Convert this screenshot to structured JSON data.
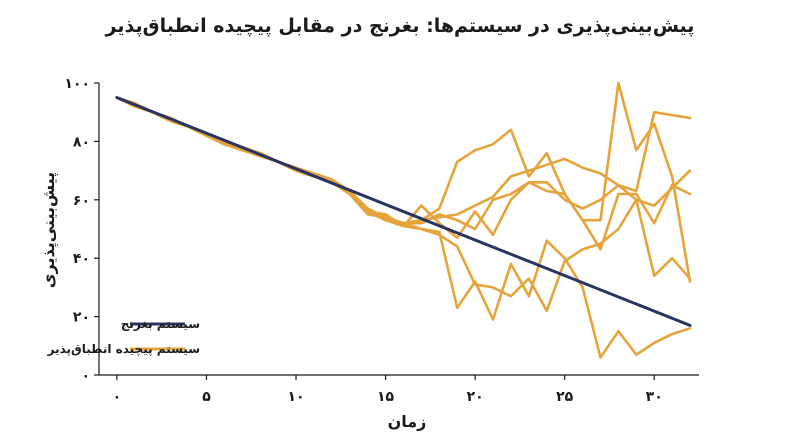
{
  "chart_data": {
    "type": "line",
    "title": "پیش‌بینی‌پذیری در سیستم‌ها: بغرنج در مقابل پیچیده انطباق‌پذیر",
    "xlabel": "زمان",
    "ylabel": "پیش‌بینی‌پذیری",
    "xlim": [
      -1,
      32.5
    ],
    "ylim": [
      0,
      100
    ],
    "x_ticks": [
      0,
      5,
      10,
      15,
      20,
      25,
      30
    ],
    "x_tick_labels": [
      "۰",
      "۵",
      "۱۰",
      "۱۵",
      "۲۰",
      "۲۵",
      "۳۰"
    ],
    "y_ticks": [
      0,
      20,
      40,
      60,
      80,
      100
    ],
    "y_tick_labels": [
      "۰",
      "۲۰",
      "۴۰",
      "۶۰",
      "۸۰",
      "۱۰۰"
    ],
    "grid": false,
    "legend_position": "bottom-left",
    "colors": {
      "complicated": "#283462",
      "complex": "#E5A43C"
    },
    "series": [
      {
        "name": "سیستم بغرنج",
        "color": "#283462",
        "x": [
          0,
          32
        ],
        "y": [
          95,
          17
        ]
      },
      {
        "name": "سیستم پیچیده انطباق‌پذیر",
        "color": "#E5A43C",
        "x": [
          0,
          1,
          2,
          3,
          4,
          5,
          6,
          7,
          8,
          9,
          10,
          11,
          12,
          13,
          14,
          15,
          16,
          17,
          18,
          19,
          20,
          21,
          22,
          23,
          24,
          25,
          26,
          27,
          28,
          29,
          30,
          31,
          32
        ],
        "y": [
          95,
          93,
          90,
          88,
          85,
          82,
          80,
          78,
          76,
          73,
          71,
          69,
          67,
          63,
          57,
          54,
          52,
          52,
          55,
          53,
          50,
          60,
          62,
          66,
          66,
          60,
          57,
          60,
          65,
          63,
          90,
          89,
          88
        ]
      },
      {
        "name": "",
        "color": "#E5A43C",
        "x": [
          0,
          1,
          2,
          3,
          4,
          5,
          6,
          7,
          8,
          9,
          10,
          11,
          12,
          13,
          14,
          15,
          16,
          17,
          18,
          19,
          20,
          21,
          22,
          23,
          24,
          25,
          26,
          27,
          28,
          29,
          30,
          31,
          32
        ],
        "y": [
          95,
          92,
          90,
          87,
          85,
          82,
          79,
          77,
          75,
          73,
          70,
          68,
          66,
          63,
          56,
          54,
          52,
          53,
          54,
          55,
          58,
          61,
          68,
          70,
          72,
          74,
          71,
          69,
          65,
          60,
          58,
          64,
          70
        ]
      },
      {
        "name": "",
        "color": "#E5A43C",
        "x": [
          0,
          1,
          2,
          3,
          4,
          5,
          6,
          7,
          8,
          9,
          10,
          11,
          12,
          13,
          14,
          15,
          16,
          17,
          18,
          19,
          20,
          21,
          22,
          23,
          24,
          25,
          26,
          27,
          28,
          29,
          30,
          31,
          32
        ],
        "y": [
          95,
          93,
          90,
          88,
          85,
          82,
          80,
          77,
          75,
          73,
          70,
          68,
          66,
          62,
          55,
          54,
          51,
          58,
          52,
          47,
          56,
          48,
          60,
          66,
          63,
          62,
          53,
          53,
          100,
          77,
          86,
          68,
          32
        ]
      },
      {
        "name": "",
        "color": "#E5A43C",
        "x": [
          0,
          1,
          2,
          3,
          4,
          5,
          6,
          7,
          8,
          9,
          10,
          11,
          12,
          13,
          14,
          15,
          16,
          17,
          18,
          19,
          20,
          21,
          22,
          23,
          24,
          25,
          26,
          27,
          28,
          29,
          30,
          31,
          32
        ],
        "y": [
          95,
          92,
          90,
          87,
          85,
          82,
          80,
          78,
          75,
          73,
          70,
          68,
          66,
          63,
          56,
          55,
          51,
          53,
          57,
          73,
          77,
          79,
          84,
          68,
          76,
          62,
          53,
          43,
          62,
          62,
          52,
          65,
          62
        ]
      },
      {
        "name": "",
        "color": "#E5A43C",
        "x": [
          0,
          1,
          2,
          3,
          4,
          5,
          6,
          7,
          8,
          9,
          10,
          11,
          12,
          13,
          14,
          15,
          16,
          17,
          18,
          19,
          20,
          21,
          22,
          23,
          24,
          25,
          26,
          27,
          28,
          29,
          30,
          31,
          32
        ],
        "y": [
          95,
          92,
          90,
          88,
          85,
          82,
          79,
          77,
          75,
          73,
          70,
          68,
          66,
          63,
          56,
          53,
          51,
          50,
          49,
          23,
          32,
          19,
          38,
          27,
          46,
          40,
          30,
          6,
          15,
          7,
          11,
          14,
          16
        ]
      },
      {
        "name": "",
        "color": "#E5A43C",
        "x": [
          0,
          1,
          2,
          3,
          4,
          5,
          6,
          7,
          8,
          9,
          10,
          11,
          12,
          13,
          14,
          15,
          16,
          17,
          18,
          19,
          20,
          21,
          22,
          23,
          24,
          25,
          26,
          27,
          28,
          29,
          30,
          31,
          32
        ],
        "y": [
          95,
          93,
          90,
          87,
          85,
          82,
          80,
          77,
          75,
          73,
          70,
          68,
          66,
          63,
          56,
          53,
          52,
          50,
          48,
          44,
          31,
          30,
          27,
          33,
          22,
          39,
          43,
          45,
          50,
          60,
          34,
          40,
          33
        ]
      }
    ]
  }
}
